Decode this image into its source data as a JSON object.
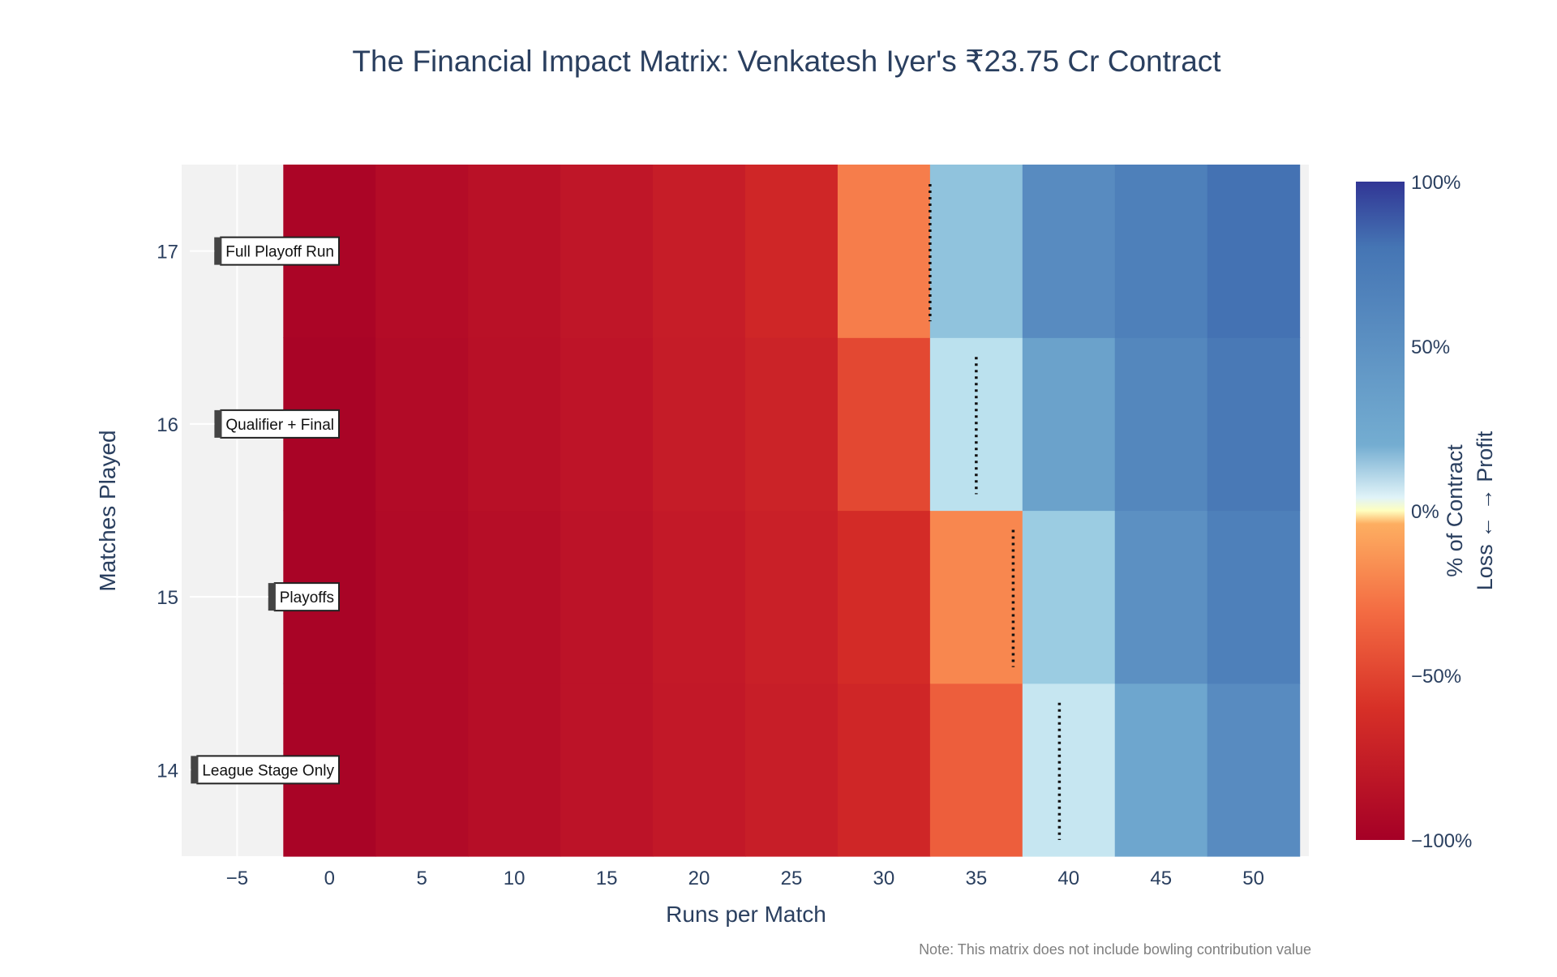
{
  "chart_data": {
    "type": "heatmap",
    "title": "The Financial Impact Matrix: Venkatesh Iyer's ₹23.75 Cr Contract",
    "xlabel": "Runs per Match",
    "ylabel": "Matches Played",
    "x_ticks": [
      "−5",
      "0",
      "5",
      "10",
      "15",
      "20",
      "25",
      "30",
      "35",
      "40",
      "45",
      "50"
    ],
    "x_values": [
      0,
      5,
      10,
      15,
      20,
      25,
      30,
      35,
      40,
      45,
      50
    ],
    "xlim": [
      -8,
      53
    ],
    "y_values": [
      14,
      15,
      16,
      17
    ],
    "y_ticks": [
      "14",
      "15",
      "16",
      "17"
    ],
    "z_unit": "% of Contract",
    "z_values": [
      [
        -97,
        -92,
        -88,
        -84,
        -80,
        -75,
        -68,
        -45,
        10,
        28,
        40
      ],
      [
        -97,
        -92,
        -88,
        -84,
        -79,
        -73,
        -64,
        -32,
        18,
        38,
        45
      ],
      [
        -97,
        -91,
        -87,
        -83,
        -77,
        -71,
        -52,
        12,
        30,
        42,
        48
      ],
      [
        -96,
        -90,
        -86,
        -82,
        -76,
        -68,
        -35,
        20,
        40,
        45,
        52
      ]
    ],
    "breakeven_runs": {
      "14": 39.5,
      "15": 37,
      "16": 35,
      "17": 32.5
    },
    "colorbar": {
      "title_line1": "% of Contract",
      "title_line2": "Loss ← → Profit",
      "ticks": [
        "100%",
        "50%",
        "0%",
        "−50%",
        "−100%"
      ],
      "range": [
        -100,
        100
      ]
    },
    "stage_labels": {
      "14": "League Stage Only",
      "15": "Playoffs",
      "16": "Qualifier + Final",
      "17": "Full Playoff Run"
    },
    "note": "Note: This matrix does not include bowling contribution value",
    "colors": {
      "title": "#2a3f5f",
      "empty_region": "#f2f2f2"
    }
  }
}
